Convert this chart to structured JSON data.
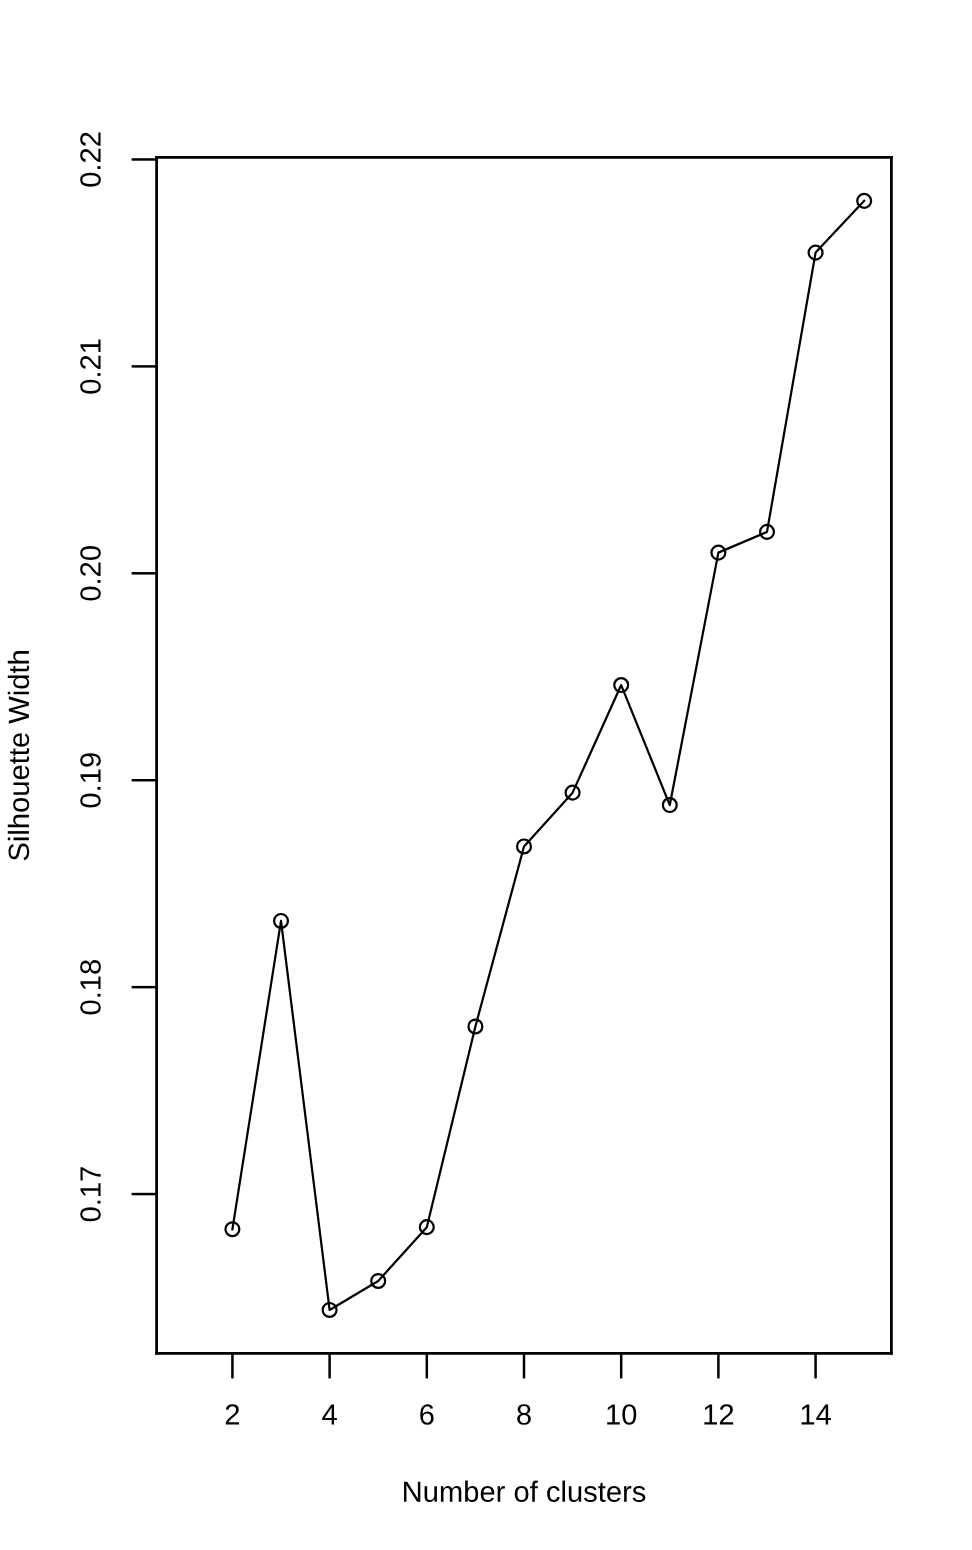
{
  "chart_data": {
    "type": "line",
    "xlabel": "Number of clusters",
    "ylabel": "Silhouette Width",
    "x": [
      2,
      3,
      4,
      5,
      6,
      7,
      8,
      9,
      10,
      11,
      12,
      13,
      14,
      15
    ],
    "values": [
      0.1683,
      0.1832,
      0.1644,
      0.1658,
      0.1684,
      0.1781,
      0.1868,
      0.1894,
      0.1946,
      0.1888,
      0.201,
      0.202,
      0.2155,
      0.218
    ],
    "color": "#000000",
    "marker": "circle",
    "line_style": "solid",
    "xlim": [
      0.44,
      15.56
    ],
    "ylim": [
      0.1623,
      0.2201
    ],
    "xticks": [
      2,
      4,
      6,
      8,
      10,
      12,
      14
    ],
    "yticks": [
      0.17,
      0.18,
      0.19,
      {
        "value": 0.2,
        "label": "0.20"
      },
      0.21,
      0.22
    ]
  }
}
